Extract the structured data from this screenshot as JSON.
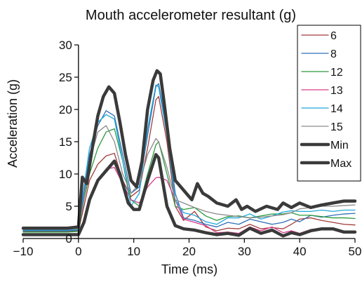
{
  "chart_data": {
    "type": "line",
    "title": "Mouth accelerometer resultant (g)",
    "xlabel": "Time (ms)",
    "ylabel": "Acceleration (g)",
    "xlim": [
      -10,
      50
    ],
    "ylim": [
      0,
      30
    ],
    "xticks": [
      -10,
      0,
      10,
      20,
      30,
      40,
      50
    ],
    "yticks": [
      0,
      5,
      10,
      15,
      20,
      25,
      30
    ],
    "legend_position": "top-right",
    "grid": false,
    "series": [
      {
        "name": "6",
        "color": "#a33b3b",
        "points": [
          [
            -10,
            1.1
          ],
          [
            -2,
            1.1
          ],
          [
            0,
            1.2
          ],
          [
            1,
            5
          ],
          [
            2,
            9
          ],
          [
            3.5,
            11.5
          ],
          [
            5,
            12.8
          ],
          [
            6.5,
            13.2
          ],
          [
            8,
            9
          ],
          [
            9.5,
            6.5
          ],
          [
            11,
            7.5
          ],
          [
            12.5,
            14
          ],
          [
            14,
            21.5
          ],
          [
            14.5,
            22
          ],
          [
            16,
            15
          ],
          [
            17.5,
            5
          ],
          [
            19,
            2.8
          ],
          [
            21,
            4.2
          ],
          [
            23,
            1.8
          ],
          [
            25,
            1.2
          ],
          [
            27,
            1.6
          ],
          [
            29,
            1.5
          ],
          [
            31,
            2.2
          ],
          [
            33,
            1.5
          ],
          [
            35,
            1.7
          ],
          [
            37,
            1.5
          ],
          [
            38.5,
            2.2
          ],
          [
            40,
            3
          ],
          [
            42,
            3.2
          ],
          [
            44,
            2.8
          ],
          [
            46,
            2.5
          ],
          [
            48,
            2.2
          ],
          [
            50,
            2.1
          ]
        ]
      },
      {
        "name": "8",
        "color": "#2f6fb5",
        "points": [
          [
            -10,
            1.2
          ],
          [
            -2,
            1.2
          ],
          [
            0,
            1.3
          ],
          [
            1,
            7
          ],
          [
            2,
            13
          ],
          [
            3.5,
            17.5
          ],
          [
            5,
            19.8
          ],
          [
            6.5,
            19
          ],
          [
            8,
            13
          ],
          [
            9.5,
            7
          ],
          [
            11,
            8
          ],
          [
            12.5,
            16
          ],
          [
            14,
            23.5
          ],
          [
            14.5,
            24
          ],
          [
            16,
            17
          ],
          [
            17.5,
            7
          ],
          [
            19,
            3.2
          ],
          [
            21,
            2.8
          ],
          [
            23,
            2.2
          ],
          [
            25,
            1.8
          ],
          [
            27,
            2.5
          ],
          [
            29,
            2.2
          ],
          [
            31,
            3
          ],
          [
            33,
            2.6
          ],
          [
            35,
            2.2
          ],
          [
            37,
            2.5
          ],
          [
            38.5,
            3
          ],
          [
            40,
            2.6
          ],
          [
            42,
            3.6
          ],
          [
            44,
            3.3
          ],
          [
            46,
            3.6
          ],
          [
            48,
            3.8
          ],
          [
            50,
            3.9
          ]
        ]
      },
      {
        "name": "12",
        "color": "#2e9a3f",
        "points": [
          [
            -10,
            1.0
          ],
          [
            -2,
            1.0
          ],
          [
            0,
            1.1
          ],
          [
            1,
            6
          ],
          [
            2,
            10
          ],
          [
            3.5,
            14
          ],
          [
            5,
            16.5
          ],
          [
            6.5,
            17
          ],
          [
            8,
            12
          ],
          [
            9.5,
            6
          ],
          [
            11,
            5
          ],
          [
            12.5,
            10
          ],
          [
            14,
            14.5
          ],
          [
            14.5,
            15
          ],
          [
            16,
            10
          ],
          [
            17.5,
            5
          ],
          [
            19,
            4.5
          ],
          [
            21,
            4.8
          ],
          [
            23,
            3.5
          ],
          [
            25,
            2.8
          ],
          [
            27,
            3.4
          ],
          [
            29,
            3.5
          ],
          [
            31,
            3.2
          ],
          [
            33,
            3.5
          ],
          [
            35,
            3.8
          ],
          [
            37,
            3.8
          ],
          [
            38.5,
            4
          ],
          [
            40,
            3.6
          ],
          [
            42,
            3.6
          ],
          [
            44,
            3.4
          ],
          [
            46,
            3.2
          ],
          [
            48,
            3.2
          ],
          [
            50,
            3.1
          ]
        ]
      },
      {
        "name": "13",
        "color": "#d93a8c",
        "points": [
          [
            -10,
            0.6
          ],
          [
            -2,
            0.6
          ],
          [
            0,
            0.7
          ],
          [
            1,
            3
          ],
          [
            2,
            6
          ],
          [
            3.5,
            9
          ],
          [
            5,
            10.8
          ],
          [
            6.5,
            11
          ],
          [
            8,
            8.5
          ],
          [
            9.5,
            6
          ],
          [
            11,
            5.5
          ],
          [
            12.5,
            8
          ],
          [
            14,
            9.4
          ],
          [
            14.5,
            9.5
          ],
          [
            16,
            9
          ],
          [
            17.5,
            6
          ],
          [
            19,
            3
          ],
          [
            21,
            2.5
          ],
          [
            23,
            2
          ],
          [
            25,
            0.9
          ],
          [
            27,
            1
          ],
          [
            29,
            0.8
          ],
          [
            31,
            1.8
          ],
          [
            33,
            1.2
          ],
          [
            35,
            1.8
          ],
          [
            37,
            0.9
          ],
          [
            38.5,
            1.2
          ],
          [
            40,
            0.8
          ],
          [
            42,
            1.4
          ],
          [
            44,
            1.6
          ],
          [
            46,
            1.4
          ],
          [
            48,
            1.1
          ],
          [
            50,
            1.0
          ]
        ]
      },
      {
        "name": "14",
        "color": "#1fa7d9",
        "points": [
          [
            -10,
            1.3
          ],
          [
            -2,
            1.3
          ],
          [
            0,
            1.4
          ],
          [
            1,
            8
          ],
          [
            2,
            14
          ],
          [
            3.5,
            18
          ],
          [
            5,
            19.2
          ],
          [
            6.5,
            18.5
          ],
          [
            8,
            12
          ],
          [
            9.5,
            5
          ],
          [
            11,
            7
          ],
          [
            12.5,
            17
          ],
          [
            14,
            23.8
          ],
          [
            14.5,
            23.5
          ],
          [
            16,
            16
          ],
          [
            17.5,
            6
          ],
          [
            19,
            4
          ],
          [
            21,
            3.6
          ],
          [
            23,
            2.6
          ],
          [
            25,
            2.2
          ],
          [
            27,
            3.2
          ],
          [
            29,
            3.2
          ],
          [
            31,
            3.8
          ],
          [
            33,
            3
          ],
          [
            35,
            3.5
          ],
          [
            37,
            4.1
          ],
          [
            38.5,
            4.3
          ],
          [
            40,
            4.2
          ],
          [
            42,
            4.2
          ],
          [
            44,
            4.4
          ],
          [
            46,
            4.2
          ],
          [
            48,
            4.4
          ],
          [
            50,
            4.4
          ]
        ]
      },
      {
        "name": "15",
        "color": "#8a8a8a",
        "points": [
          [
            -10,
            1.4
          ],
          [
            -2,
            1.4
          ],
          [
            0,
            1.5
          ],
          [
            1,
            6
          ],
          [
            2,
            12
          ],
          [
            3.5,
            16.5
          ],
          [
            5,
            17.5
          ],
          [
            6.5,
            15
          ],
          [
            8,
            10
          ],
          [
            9.5,
            7
          ],
          [
            11,
            8.5
          ],
          [
            12.5,
            13
          ],
          [
            14,
            15.5
          ],
          [
            14.5,
            15
          ],
          [
            16,
            11
          ],
          [
            17.5,
            6
          ],
          [
            19,
            5.5
          ],
          [
            21,
            4.8
          ],
          [
            23,
            4.2
          ],
          [
            25,
            3.8
          ],
          [
            27,
            3.6
          ],
          [
            29,
            3.4
          ],
          [
            31,
            3.2
          ],
          [
            33,
            3.3
          ],
          [
            35,
            3.5
          ],
          [
            37,
            3.7
          ],
          [
            38.5,
            4
          ],
          [
            40,
            4.6
          ],
          [
            42,
            4.8
          ],
          [
            44,
            5
          ],
          [
            46,
            5
          ],
          [
            48,
            5.1
          ],
          [
            50,
            5.2
          ]
        ]
      },
      {
        "name": "Min",
        "color": "#3a3a3a",
        "points": [
          [
            -10,
            0.6
          ],
          [
            -2,
            0.6
          ],
          [
            0,
            0.6
          ],
          [
            1,
            2.5
          ],
          [
            2,
            6
          ],
          [
            3.5,
            9
          ],
          [
            5,
            10.5
          ],
          [
            6.5,
            12
          ],
          [
            7.5,
            10
          ],
          [
            9,
            5.5
          ],
          [
            10,
            4.5
          ],
          [
            11,
            4.5
          ],
          [
            12.5,
            9
          ],
          [
            14,
            13
          ],
          [
            14.5,
            12.5
          ],
          [
            16,
            5
          ],
          [
            17.5,
            2
          ],
          [
            19,
            1.5
          ],
          [
            21,
            1.3
          ],
          [
            23,
            0.9
          ],
          [
            25,
            0.6
          ],
          [
            27,
            0.8
          ],
          [
            29,
            0.5
          ],
          [
            31,
            1.6
          ],
          [
            33,
            0.8
          ],
          [
            35,
            1.3
          ],
          [
            37,
            0.4
          ],
          [
            38.5,
            0.9
          ],
          [
            40,
            0.6
          ],
          [
            42,
            1.2
          ],
          [
            44,
            1.5
          ],
          [
            46,
            1.5
          ],
          [
            48,
            1.0
          ],
          [
            50,
            1.0
          ]
        ]
      },
      {
        "name": "Max",
        "color": "#3a3a3a",
        "points": [
          [
            -10,
            1.6
          ],
          [
            -2,
            1.6
          ],
          [
            0,
            1.8
          ],
          [
            0.7,
            9.5
          ],
          [
            1.5,
            8.5
          ],
          [
            2.5,
            14
          ],
          [
            3.5,
            19
          ],
          [
            4.5,
            22
          ],
          [
            5.5,
            23.5
          ],
          [
            6.5,
            22.5
          ],
          [
            7.5,
            18
          ],
          [
            8.5,
            13
          ],
          [
            9.5,
            9
          ],
          [
            10.5,
            8
          ],
          [
            11.5,
            12
          ],
          [
            12.5,
            20
          ],
          [
            13.5,
            24.5
          ],
          [
            14.2,
            26
          ],
          [
            14.8,
            25.5
          ],
          [
            15.5,
            21
          ],
          [
            16.5,
            14
          ],
          [
            17.5,
            9
          ],
          [
            18.5,
            8
          ],
          [
            19.5,
            7
          ],
          [
            20.5,
            6
          ],
          [
            21.5,
            8.5
          ],
          [
            22.5,
            7
          ],
          [
            23.5,
            6.5
          ],
          [
            25,
            5.5
          ],
          [
            27,
            5
          ],
          [
            28.5,
            6
          ],
          [
            29.5,
            4.5
          ],
          [
            30.5,
            5
          ],
          [
            32,
            4.2
          ],
          [
            34,
            5
          ],
          [
            36,
            4.5
          ],
          [
            37,
            5.5
          ],
          [
            38.5,
            4.8
          ],
          [
            40,
            5.5
          ],
          [
            42,
            4.8
          ],
          [
            44,
            5.2
          ],
          [
            46,
            5.5
          ],
          [
            48,
            5.8
          ],
          [
            50,
            5.8
          ]
        ]
      }
    ]
  }
}
